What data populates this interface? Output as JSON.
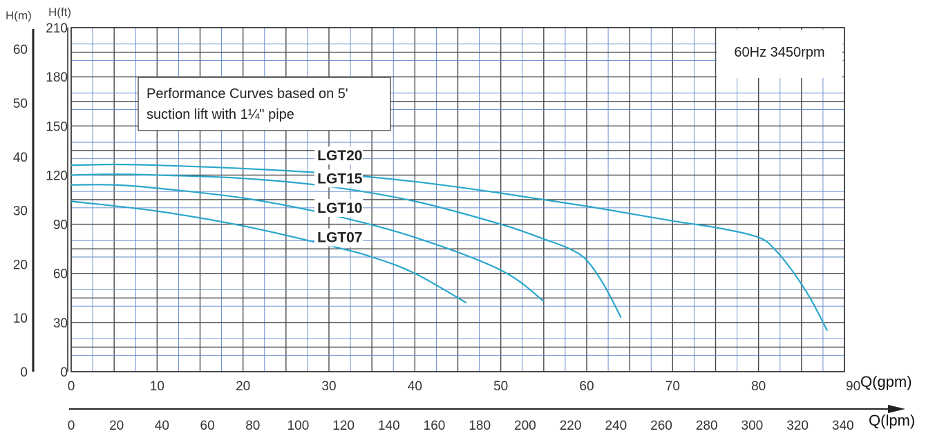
{
  "chart_data": {
    "type": "line",
    "title": "",
    "annotation": [
      "Performance Curves based on 5'",
      "suction lift with 1¼\" pipe"
    ],
    "speed_label": "60Hz 3450rpm",
    "y_left_unit": "H(m)",
    "y_right_unit": "H(ft)",
    "x_label": "Q(gpm)",
    "x2_label": "Q(lpm)",
    "xlim": [
      0,
      90
    ],
    "ylim_ft": [
      0,
      210
    ],
    "ylim_m": [
      0,
      64
    ],
    "x_ticks": [
      0,
      10,
      20,
      30,
      40,
      50,
      60,
      70,
      80,
      90
    ],
    "x2_ticks": [
      0,
      20,
      40,
      60,
      80,
      100,
      120,
      140,
      160,
      180,
      200,
      220,
      240,
      260,
      280,
      300,
      320,
      340
    ],
    "y_ft_ticks": [
      0,
      30,
      60,
      90,
      120,
      150,
      180,
      210
    ],
    "y_m_ticks": [
      0,
      10,
      20,
      30,
      40,
      50,
      60
    ],
    "grid": true,
    "series": [
      {
        "name": "LGT20",
        "color": "#2aa7cc",
        "x": [
          0,
          5,
          10,
          20,
          30,
          40,
          50,
          60,
          70,
          75,
          80,
          82,
          84,
          86,
          88
        ],
        "y": [
          126,
          126.5,
          126,
          124,
          121,
          116,
          109,
          101,
          92,
          88,
          82,
          74,
          61,
          45,
          25
        ]
      },
      {
        "name": "LGT15",
        "color": "#2aa7cc",
        "x": [
          0,
          5,
          10,
          20,
          30,
          40,
          50,
          55,
          58,
          60,
          62,
          64
        ],
        "y": [
          120,
          120.5,
          120,
          118,
          113,
          104,
          90,
          81,
          75,
          68,
          53,
          33
        ]
      },
      {
        "name": "LGT10",
        "color": "#2aa7cc",
        "x": [
          0,
          5,
          10,
          20,
          30,
          40,
          50,
          55
        ],
        "y": [
          114,
          114,
          112,
          106,
          96,
          82,
          62,
          43
        ]
      },
      {
        "name": "LGT07",
        "color": "#2aa7cc",
        "x": [
          0,
          10,
          20,
          30,
          35,
          40,
          46
        ],
        "y": [
          104,
          98,
          89,
          77,
          70,
          60,
          42
        ]
      }
    ],
    "curve_labels": [
      {
        "text": "LGT20",
        "x": 28,
        "y": 129
      },
      {
        "text": "LGT15",
        "x": 28,
        "y": 115
      },
      {
        "text": "LGT10",
        "x": 28,
        "y": 97
      },
      {
        "text": "LGT07",
        "x": 28,
        "y": 79
      }
    ]
  }
}
